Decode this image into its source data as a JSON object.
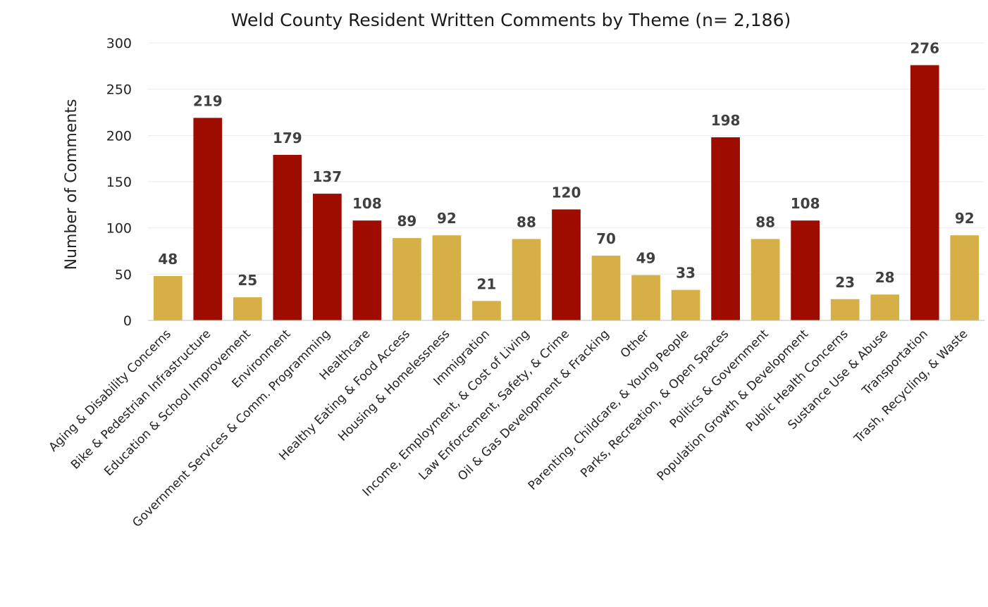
{
  "chart_data": {
    "type": "bar",
    "title": "Weld County Resident Written Comments by Theme (n= 2,186)",
    "xlabel": "",
    "ylabel": "Number of Comments",
    "ylim": [
      0,
      300
    ],
    "yticks": [
      0,
      50,
      100,
      150,
      200,
      250,
      300
    ],
    "grid": true,
    "legend": "none",
    "categories": [
      "Aging & Disability Concerns",
      "Bike & Pedestrian Infrastructure",
      "Education & School Improvement",
      "Environment",
      "Government Services & Comm. Programming",
      "Healthcare",
      "Healthy Eating & Food Access",
      "Housing & Homelessness",
      "Immigration",
      "Income, Employment, & Cost of Living",
      "Law Enforcement, Safety, & Crime",
      "Oil & Gas Development & Fracking",
      "Other",
      "Parenting, Childcare, & Young People",
      "Parks, Recreation, & Open Spaces",
      "Politics & Government",
      "Population Growth & Development",
      "Public Health Concerns",
      "Sustance Use & Abuse",
      "Transportation",
      "Trash, Recycling, & Waste"
    ],
    "values": [
      48,
      219,
      25,
      179,
      137,
      108,
      89,
      92,
      21,
      88,
      120,
      70,
      49,
      33,
      198,
      88,
      108,
      23,
      28,
      276,
      92
    ],
    "highlight": [
      false,
      true,
      false,
      true,
      true,
      true,
      false,
      false,
      false,
      false,
      true,
      false,
      false,
      false,
      true,
      false,
      true,
      false,
      false,
      true,
      false
    ],
    "colors": {
      "highlight": "#9e0c00",
      "normal": "#d6b047"
    }
  }
}
